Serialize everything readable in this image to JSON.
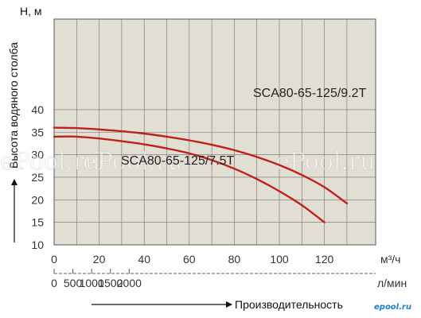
{
  "chart_data": {
    "type": "line",
    "ylabel": "Высота водяного столба",
    "yunit": "Н, м",
    "xunit_top": "м³/ч",
    "xunit_bottom": "л/мин",
    "xlabel": "Производительность",
    "ylim": [
      10,
      45
    ],
    "yticks": [
      "10",
      "15",
      "20",
      "25",
      "30",
      "35",
      "40"
    ],
    "xlim": [
      0,
      140
    ],
    "xticks_top": [
      "0",
      "20",
      "40",
      "60",
      "80",
      "100",
      "120"
    ],
    "xticks_bottom": [
      "0",
      "500",
      "1000",
      "1500",
      "2000"
    ],
    "grid": true,
    "series": [
      {
        "name": "SCA80-65-125/9.2T",
        "color": "#c0201a",
        "x": [
          0,
          10,
          20,
          30,
          40,
          50,
          60,
          70,
          80,
          90,
          100,
          110,
          120,
          130
        ],
        "y": [
          36.0,
          35.9,
          35.6,
          35.2,
          34.7,
          34.0,
          33.2,
          32.2,
          31.0,
          29.5,
          27.7,
          25.5,
          22.8,
          19.2
        ]
      },
      {
        "name": "SCA80-65-125/7.5T",
        "color": "#c0201a",
        "x": [
          0,
          10,
          20,
          30,
          40,
          50,
          60,
          70,
          80,
          90,
          100,
          110,
          120
        ],
        "y": [
          34.0,
          34.0,
          33.6,
          33.0,
          32.3,
          31.4,
          30.3,
          28.8,
          26.9,
          24.6,
          21.9,
          18.8,
          15.0
        ]
      }
    ]
  },
  "watermark": "ePool.ru",
  "logo": "epool.ru"
}
